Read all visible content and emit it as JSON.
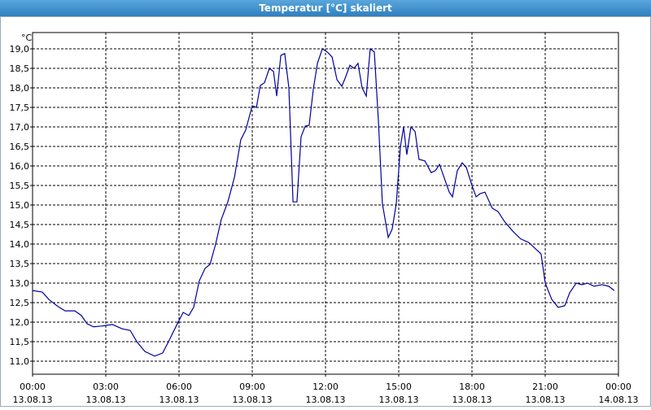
{
  "chart_data": {
    "type": "line",
    "title": "Temperatur [°C] skaliert",
    "y_label": "°C",
    "color": "#0000a0",
    "grid": true,
    "xlim": [
      0,
      24
    ],
    "ylim": [
      10.667,
      19.417
    ],
    "xticks": [
      {
        "value": 0,
        "label": "00:00\n13.08.13"
      },
      {
        "value": 3,
        "label": "03:00\n13.08.13"
      },
      {
        "value": 6,
        "label": "06:00\n13.08.13"
      },
      {
        "value": 9,
        "label": "09:00\n13.08.13"
      },
      {
        "value": 12,
        "label": "12:00\n13.08.13"
      },
      {
        "value": 15,
        "label": "15:00\n13.08.13"
      },
      {
        "value": 18,
        "label": "18:00\n13.08.13"
      },
      {
        "value": 21,
        "label": "21:00\n13.08.13"
      },
      {
        "value": 24,
        "label": "00:00\n14.08.13"
      }
    ],
    "yticks": [
      {
        "value": 11,
        "label": "11,0"
      },
      {
        "value": 11.5,
        "label": "11,5"
      },
      {
        "value": 12,
        "label": "12,0"
      },
      {
        "value": 12.5,
        "label": "12,5"
      },
      {
        "value": 13,
        "label": "13,0"
      },
      {
        "value": 13.5,
        "label": "13,5"
      },
      {
        "value": 14,
        "label": "14,0"
      },
      {
        "value": 14.5,
        "label": "14,5"
      },
      {
        "value": 15,
        "label": "15,0"
      },
      {
        "value": 15.5,
        "label": "15,5"
      },
      {
        "value": 16,
        "label": "16,0"
      },
      {
        "value": 16.5,
        "label": "16,5"
      },
      {
        "value": 17,
        "label": "17,0"
      },
      {
        "value": 17.5,
        "label": "17,5"
      },
      {
        "value": 18,
        "label": "18,0"
      },
      {
        "value": 18.5,
        "label": "18,5"
      },
      {
        "value": 19,
        "label": "19,0"
      }
    ],
    "x": [
      0,
      0.4,
      0.67,
      1.0,
      1.33,
      1.73,
      2.0,
      2.23,
      2.5,
      2.83,
      3.27,
      3.67,
      4.0,
      4.27,
      4.6,
      5.0,
      5.33,
      5.6,
      5.93,
      6.17,
      6.4,
      6.6,
      6.83,
      7.07,
      7.27,
      7.5,
      7.73,
      8.0,
      8.27,
      8.53,
      8.73,
      9.0,
      9.17,
      9.33,
      9.5,
      9.7,
      9.87,
      10.0,
      10.17,
      10.33,
      10.5,
      10.67,
      10.83,
      11.0,
      11.17,
      11.33,
      11.5,
      11.67,
      11.87,
      12.07,
      12.27,
      12.47,
      12.67,
      12.83,
      13.0,
      13.17,
      13.33,
      13.5,
      13.67,
      13.83,
      14.0,
      14.17,
      14.33,
      14.57,
      14.73,
      14.9,
      15.07,
      15.2,
      15.33,
      15.5,
      15.67,
      15.83,
      16.07,
      16.33,
      16.5,
      16.67,
      16.9,
      17.07,
      17.2,
      17.4,
      17.6,
      17.77,
      18.0,
      18.17,
      18.33,
      18.53,
      18.83,
      19.07,
      19.33,
      19.67,
      20.0,
      20.33,
      20.6,
      20.83,
      21.0,
      21.27,
      21.53,
      21.8,
      22.0,
      22.27,
      22.5,
      22.73,
      23.0,
      23.33,
      23.6,
      23.83
    ],
    "values": [
      12.81,
      12.77,
      12.58,
      12.42,
      12.29,
      12.29,
      12.17,
      11.96,
      11.88,
      11.9,
      11.94,
      11.83,
      11.79,
      11.5,
      11.25,
      11.13,
      11.21,
      11.54,
      11.96,
      12.25,
      12.17,
      12.38,
      13.06,
      13.38,
      13.48,
      14.0,
      14.63,
      15.08,
      15.71,
      16.67,
      16.92,
      17.54,
      17.5,
      18.06,
      18.13,
      18.5,
      18.42,
      17.79,
      18.83,
      18.88,
      18.0,
      15.08,
      15.08,
      16.75,
      17.02,
      17.04,
      17.96,
      18.63,
      19.0,
      18.92,
      18.79,
      18.21,
      18.04,
      18.29,
      18.58,
      18.5,
      18.63,
      18.0,
      17.79,
      19.0,
      18.92,
      17.13,
      15.04,
      14.17,
      14.38,
      15.04,
      16.5,
      17.0,
      16.29,
      17.0,
      16.88,
      16.17,
      16.13,
      15.83,
      15.88,
      16.04,
      15.63,
      15.33,
      15.21,
      15.88,
      16.08,
      15.96,
      15.5,
      15.21,
      15.29,
      15.33,
      14.92,
      14.83,
      14.58,
      14.33,
      14.13,
      14.04,
      13.88,
      13.75,
      13.0,
      12.58,
      12.38,
      12.42,
      12.75,
      13.0,
      12.96,
      13.0,
      12.92,
      12.96,
      12.92,
      12.81
    ]
  }
}
